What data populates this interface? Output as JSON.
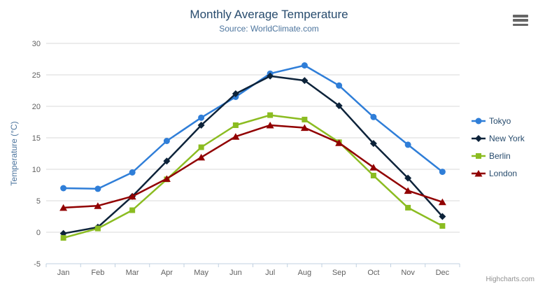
{
  "chart_data": {
    "type": "line",
    "title": "Monthly Average Temperature",
    "subtitle": "Source: WorldClimate.com",
    "xlabel": "",
    "ylabel": "Temperature (°C)",
    "ylim": [
      -5,
      30
    ],
    "ytick_interval": 5,
    "yticks": [
      30,
      25,
      20,
      15,
      10,
      5,
      0,
      -5
    ],
    "grid": true,
    "legend_position": "right",
    "categories": [
      "Jan",
      "Feb",
      "Mar",
      "Apr",
      "May",
      "Jun",
      "Jul",
      "Aug",
      "Sep",
      "Oct",
      "Nov",
      "Dec"
    ],
    "series": [
      {
        "name": "Tokyo",
        "color": "#2f7ed8",
        "marker": "circle",
        "values": [
          7.0,
          6.9,
          9.5,
          14.5,
          18.2,
          21.5,
          25.2,
          26.5,
          23.3,
          18.3,
          13.9,
          9.6
        ]
      },
      {
        "name": "New York",
        "color": "#0d233a",
        "marker": "diamond",
        "values": [
          -0.2,
          0.8,
          5.7,
          11.3,
          17.0,
          22.0,
          24.8,
          24.1,
          20.1,
          14.1,
          8.6,
          2.5
        ]
      },
      {
        "name": "Berlin",
        "color": "#8bbc21",
        "marker": "square",
        "values": [
          -0.9,
          0.6,
          3.5,
          8.4,
          13.5,
          17.0,
          18.6,
          17.9,
          14.3,
          9.0,
          3.9,
          1.0
        ]
      },
      {
        "name": "London",
        "color": "#910000",
        "marker": "triangle",
        "values": [
          3.9,
          4.2,
          5.7,
          8.5,
          11.9,
          15.2,
          17.0,
          16.6,
          14.2,
          10.3,
          6.6,
          4.8
        ]
      }
    ]
  },
  "header": {
    "menu_icon": "hamburger"
  },
  "credits": {
    "label": "Highcharts.com"
  },
  "colors": {
    "title": "#274b6d",
    "subtitle": "#4d759e",
    "axis_title": "#4d759e",
    "axis_label": "#606060",
    "grid_line": "#d8d8d8",
    "axis_line": "#c0d0e0",
    "tick": "#c0d0e0",
    "legend_text": "#274b6d",
    "credits_text": "#909090",
    "menu_icon": "#666666"
  }
}
